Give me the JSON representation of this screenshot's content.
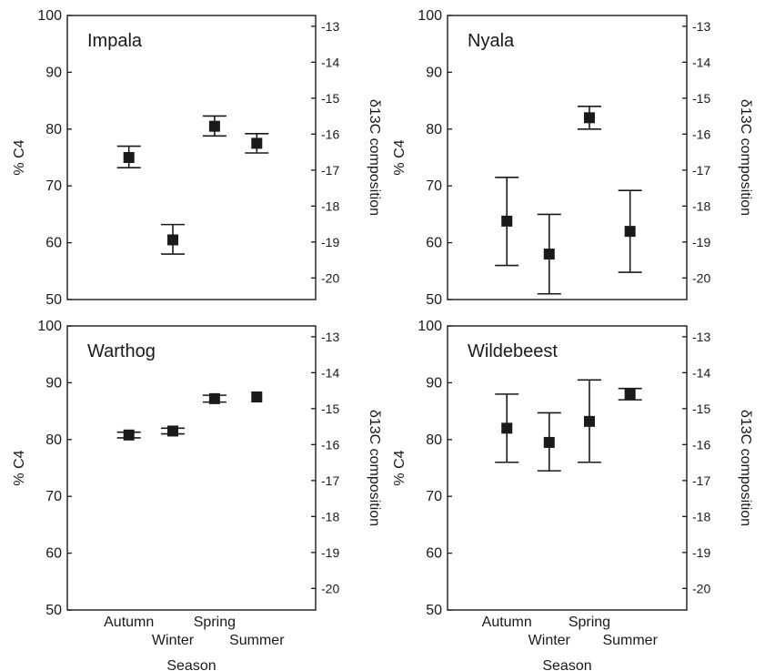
{
  "chart_data": [
    {
      "type": "scatter",
      "title": "Impala",
      "ylabel_left": "% C4",
      "ylabel_right": "δ13C composition",
      "xlabel": "",
      "ylim": [
        50,
        100
      ],
      "ylim_right": [
        -20.6,
        -12.7
      ],
      "left_ticks": [
        "50",
        "60",
        "70",
        "80",
        "90",
        "100"
      ],
      "right_ticks": [
        "-13",
        "-14",
        "-15",
        "-16",
        "-17",
        "-18",
        "-19",
        "-20"
      ],
      "categories": [],
      "points": [
        {
          "x": 1,
          "y": 75.0,
          "low": 73.2,
          "high": 77.0
        },
        {
          "x": 2,
          "y": 60.5,
          "low": 58.0,
          "high": 63.2
        },
        {
          "x": 3,
          "y": 80.5,
          "low": 78.8,
          "high": 82.3
        },
        {
          "x": 4,
          "y": 77.5,
          "low": 75.8,
          "high": 79.2
        }
      ]
    },
    {
      "type": "scatter",
      "title": "Nyala",
      "ylabel_left": "% C4",
      "ylabel_right": "δ13C composition",
      "xlabel": "",
      "ylim": [
        50,
        100
      ],
      "ylim_right": [
        -20.6,
        -12.7
      ],
      "left_ticks": [
        "50",
        "60",
        "70",
        "80",
        "90",
        "100"
      ],
      "right_ticks": [
        "-13",
        "-14",
        "-15",
        "-16",
        "-17",
        "-18",
        "-19",
        "-20"
      ],
      "categories": [],
      "points": [
        {
          "x": 1,
          "y": 63.8,
          "low": 56.0,
          "high": 71.5
        },
        {
          "x": 2,
          "y": 58.0,
          "low": 51.0,
          "high": 65.0
        },
        {
          "x": 3,
          "y": 82.0,
          "low": 80.0,
          "high": 84.0
        },
        {
          "x": 4,
          "y": 62.0,
          "low": 54.8,
          "high": 69.2
        }
      ]
    },
    {
      "type": "scatter",
      "title": "Warthog",
      "ylabel_left": "% C4",
      "ylabel_right": "δ13C composition",
      "xlabel": "Season",
      "ylim": [
        50,
        100
      ],
      "ylim_right": [
        -20.6,
        -12.7
      ],
      "left_ticks": [
        "50",
        "60",
        "70",
        "80",
        "90",
        "100"
      ],
      "right_ticks": [
        "-13",
        "-14",
        "-15",
        "-16",
        "-17",
        "-18",
        "-19",
        "-20"
      ],
      "categories": [
        "Autumn",
        "Winter",
        "Spring",
        "Summer"
      ],
      "points": [
        {
          "x": 1,
          "y": 80.8,
          "low": 80.3,
          "high": 81.3
        },
        {
          "x": 2,
          "y": 81.5,
          "low": 81.0,
          "high": 82.0
        },
        {
          "x": 3,
          "y": 87.2,
          "low": 86.6,
          "high": 87.8
        },
        {
          "x": 4,
          "y": 87.5,
          "low": 87.5,
          "high": 87.5
        }
      ]
    },
    {
      "type": "scatter",
      "title": "Wildebeest",
      "ylabel_left": "% C4",
      "ylabel_right": "δ13C composition",
      "xlabel": "Season",
      "ylim": [
        50,
        100
      ],
      "ylim_right": [
        -20.6,
        -12.7
      ],
      "left_ticks": [
        "50",
        "60",
        "70",
        "80",
        "90",
        "100"
      ],
      "right_ticks": [
        "-13",
        "-14",
        "-15",
        "-16",
        "-17",
        "-18",
        "-19",
        "-20"
      ],
      "categories": [
        "Autumn",
        "Winter",
        "Spring",
        "Summer"
      ],
      "points": [
        {
          "x": 1,
          "y": 82.0,
          "low": 76.0,
          "high": 88.0
        },
        {
          "x": 2,
          "y": 79.5,
          "low": 74.5,
          "high": 84.7
        },
        {
          "x": 3,
          "y": 83.2,
          "low": 76.0,
          "high": 90.5
        },
        {
          "x": 4,
          "y": 88.0,
          "low": 87.0,
          "high": 89.0
        }
      ]
    }
  ]
}
